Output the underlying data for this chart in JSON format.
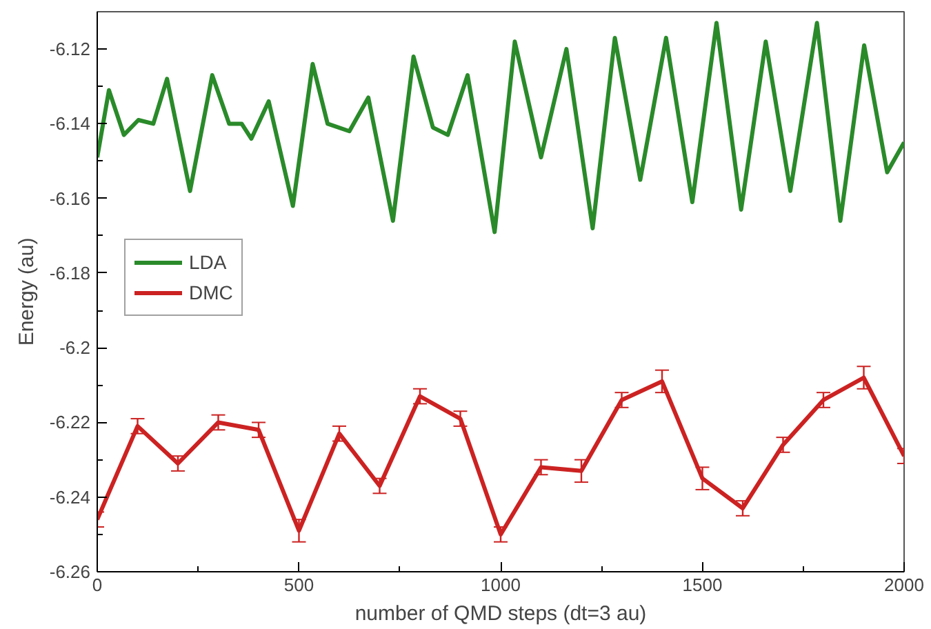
{
  "chart_data": {
    "type": "line",
    "xlabel": "number of QMD steps (dt=3 au)",
    "ylabel": "Energy (au)",
    "xlim": [
      0,
      2000
    ],
    "ylim": [
      -6.26,
      -6.11
    ],
    "xticks": [
      0,
      {
        "value": 250,
        "label": null
      },
      500,
      {
        "value": 750,
        "label": null
      },
      1000,
      {
        "value": 1250,
        "label": null
      },
      1500,
      {
        "value": 1750,
        "label": null
      },
      2000
    ],
    "yticks": [
      -6.26,
      {
        "value": -6.25,
        "label": null
      },
      -6.24,
      {
        "value": -6.23,
        "label": null
      },
      -6.22,
      {
        "value": -6.21,
        "label": null
      },
      -6.2,
      {
        "value": -6.19,
        "label": null
      },
      -6.18,
      {
        "value": -6.17,
        "label": null
      },
      -6.16,
      {
        "value": -6.15,
        "label": null
      },
      -6.14,
      {
        "value": -6.13,
        "label": null
      },
      -6.12
    ],
    "grid": false,
    "legend": "left",
    "marker": "none",
    "line_style": "solid",
    "series": [
      {
        "name": "LDA",
        "color": "#2a8a2a",
        "x": [
          0,
          29,
          66,
          102,
          139,
          173,
          230,
          285,
          327,
          358,
          382,
          425,
          485,
          534,
          571,
          625,
          672,
          733,
          784,
          832,
          869,
          918,
          985,
          1035,
          1100,
          1163,
          1228,
          1283,
          1346,
          1410,
          1475,
          1535,
          1596,
          1657,
          1718,
          1784,
          1842,
          1901,
          1958,
          2000
        ],
        "values": [
          -6.149,
          -6.131,
          -6.143,
          -6.139,
          -6.14,
          -6.128,
          -6.158,
          -6.127,
          -6.14,
          -6.14,
          -6.144,
          -6.134,
          -6.162,
          -6.124,
          -6.14,
          -6.142,
          -6.133,
          -6.166,
          -6.122,
          -6.141,
          -6.143,
          -6.127,
          -6.169,
          -6.118,
          -6.149,
          -6.12,
          -6.168,
          -6.117,
          -6.155,
          -6.117,
          -6.161,
          -6.113,
          -6.163,
          -6.118,
          -6.158,
          -6.113,
          -6.166,
          -6.119,
          -6.153,
          -6.145
        ]
      },
      {
        "name": "DMC",
        "color": "#cc2222",
        "x": [
          0,
          100,
          200,
          300,
          400,
          500,
          600,
          700,
          800,
          900,
          1000,
          1100,
          1200,
          1300,
          1400,
          1500,
          1600,
          1700,
          1800,
          1900,
          2000
        ],
        "values": [
          -6.246,
          -6.221,
          -6.231,
          -6.22,
          -6.222,
          -6.249,
          -6.223,
          -6.237,
          -6.213,
          -6.219,
          -6.25,
          -6.232,
          -6.233,
          -6.214,
          -6.209,
          -6.235,
          -6.243,
          -6.226,
          -6.214,
          -6.208,
          -6.229
        ],
        "errors": [
          0.002,
          0.002,
          0.002,
          0.002,
          0.002,
          0.003,
          0.002,
          0.002,
          0.002,
          0.002,
          0.002,
          0.002,
          0.003,
          0.002,
          0.003,
          0.003,
          0.002,
          0.002,
          0.002,
          0.003,
          0.002
        ]
      }
    ]
  }
}
